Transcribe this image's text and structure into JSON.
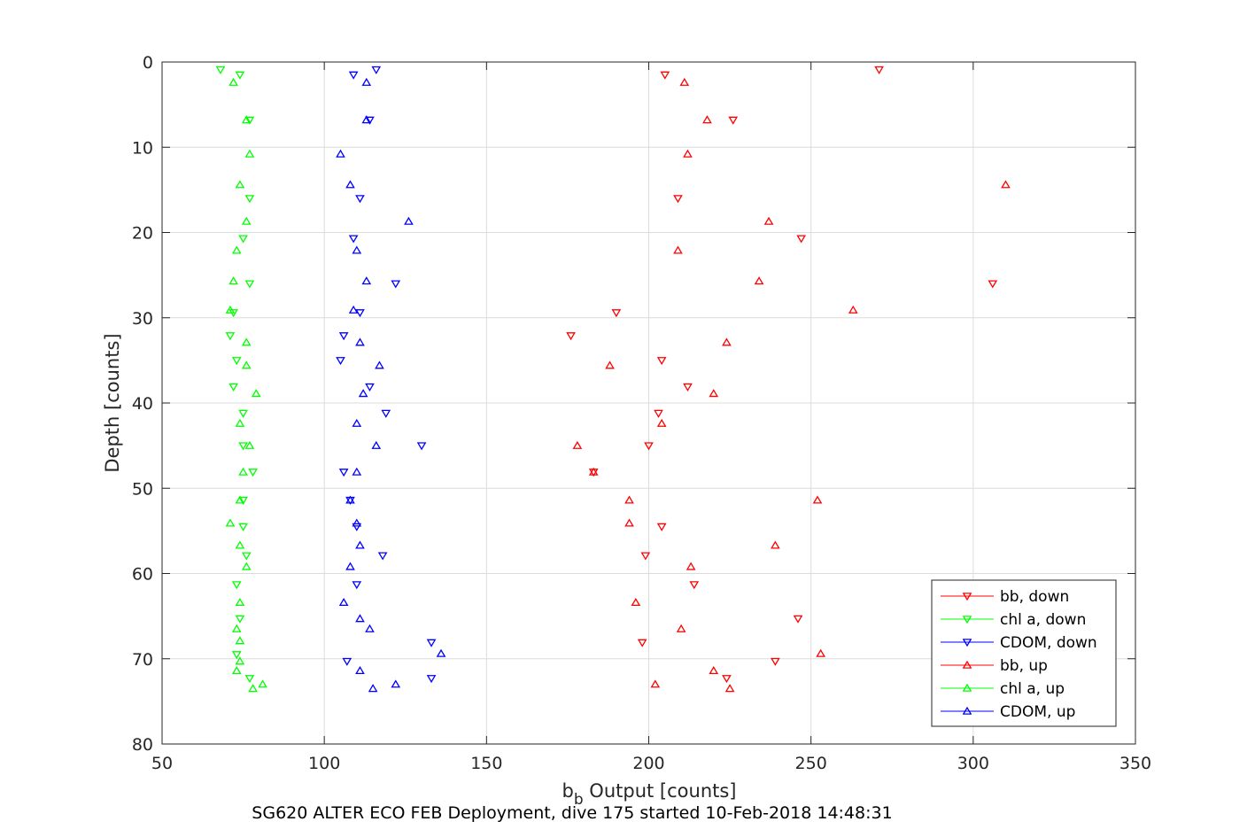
{
  "chart_data": {
    "type": "scatter",
    "xlabel": "b",
    "xlabel_sub": "b",
    "xlabel_rest": " Output [counts]",
    "ylabel": "Depth [counts]",
    "caption": "SG620 ALTER ECO FEB Deployment, dive 175 started 10-Feb-2018 14:48:31",
    "xlim": [
      50,
      350
    ],
    "ylim": [
      0,
      80
    ],
    "y_reversed": true,
    "grid": true,
    "legend_position": "bottom-right",
    "xticks": [
      "50",
      "100",
      "150",
      "200",
      "250",
      "300",
      "350"
    ],
    "yticks": [
      "0",
      "10",
      "20",
      "30",
      "40",
      "50",
      "60",
      "70",
      "80"
    ],
    "series": [
      {
        "name": "bb, down",
        "color": "#ff0000",
        "marker": "triangle-down",
        "points": [
          [
            271,
            0.9
          ],
          [
            205,
            1.5
          ],
          [
            226,
            6.8
          ],
          [
            209,
            16.0
          ],
          [
            247,
            20.7
          ],
          [
            306,
            26.0
          ],
          [
            190,
            29.4
          ],
          [
            176,
            32.1
          ],
          [
            204,
            35.0
          ],
          [
            212,
            38.1
          ],
          [
            203,
            41.2
          ],
          [
            200,
            45.0
          ],
          [
            183,
            48.1
          ],
          [
            204,
            54.5
          ],
          [
            199,
            57.9
          ],
          [
            214,
            61.3
          ],
          [
            246,
            65.3
          ],
          [
            198,
            68.1
          ],
          [
            239,
            70.3
          ],
          [
            224,
            72.3
          ]
        ]
      },
      {
        "name": "chl a, down",
        "color": "#00ff00",
        "marker": "triangle-down",
        "points": [
          [
            68,
            0.9
          ],
          [
            74,
            1.5
          ],
          [
            77,
            6.8
          ],
          [
            77,
            16.0
          ],
          [
            75,
            20.7
          ],
          [
            77,
            26.0
          ],
          [
            72,
            29.4
          ],
          [
            71,
            32.1
          ],
          [
            73,
            35.0
          ],
          [
            72,
            38.1
          ],
          [
            75,
            41.2
          ],
          [
            75,
            45.0
          ],
          [
            78,
            48.1
          ],
          [
            75,
            51.4
          ],
          [
            75,
            54.5
          ],
          [
            76,
            57.9
          ],
          [
            73,
            61.3
          ],
          [
            74,
            65.3
          ],
          [
            73,
            69.5
          ],
          [
            77,
            72.3
          ]
        ]
      },
      {
        "name": "CDOM, down",
        "color": "#0000ff",
        "marker": "triangle-down",
        "points": [
          [
            116,
            0.9
          ],
          [
            109,
            1.5
          ],
          [
            114,
            6.8
          ],
          [
            111,
            16.0
          ],
          [
            109,
            20.7
          ],
          [
            122,
            26.0
          ],
          [
            111,
            29.4
          ],
          [
            106,
            32.1
          ],
          [
            105,
            35.0
          ],
          [
            114,
            38.1
          ],
          [
            119,
            41.2
          ],
          [
            130,
            45.0
          ],
          [
            106,
            48.1
          ],
          [
            108,
            51.4
          ],
          [
            110,
            54.5
          ],
          [
            118,
            57.9
          ],
          [
            110,
            61.3
          ],
          [
            133,
            68.1
          ],
          [
            107,
            70.3
          ],
          [
            133,
            72.3
          ]
        ]
      },
      {
        "name": "bb, up",
        "color": "#ff0000",
        "marker": "triangle-up",
        "points": [
          [
            211,
            2.4
          ],
          [
            218,
            6.8
          ],
          [
            212,
            10.8
          ],
          [
            310,
            14.4
          ],
          [
            237,
            18.7
          ],
          [
            209,
            22.1
          ],
          [
            234,
            25.7
          ],
          [
            263,
            29.1
          ],
          [
            224,
            32.9
          ],
          [
            188,
            35.6
          ],
          [
            220,
            38.9
          ],
          [
            204,
            42.4
          ],
          [
            178,
            45.0
          ],
          [
            183,
            48.1
          ],
          [
            194,
            51.4
          ],
          [
            252,
            51.4
          ],
          [
            194,
            54.1
          ],
          [
            239,
            56.7
          ],
          [
            213,
            59.2
          ],
          [
            196,
            63.4
          ],
          [
            210,
            66.5
          ],
          [
            253,
            69.4
          ],
          [
            220,
            71.4
          ],
          [
            202,
            73.0
          ],
          [
            225,
            73.5
          ]
        ]
      },
      {
        "name": "chl a, up",
        "color": "#00ff00",
        "marker": "triangle-up",
        "points": [
          [
            72,
            2.4
          ],
          [
            76,
            6.8
          ],
          [
            77,
            10.8
          ],
          [
            74,
            14.4
          ],
          [
            76,
            18.7
          ],
          [
            73,
            22.1
          ],
          [
            72,
            25.7
          ],
          [
            71,
            29.1
          ],
          [
            76,
            32.9
          ],
          [
            76,
            35.6
          ],
          [
            79,
            38.9
          ],
          [
            74,
            42.4
          ],
          [
            77,
            45.0
          ],
          [
            75,
            48.1
          ],
          [
            74,
            51.4
          ],
          [
            71,
            54.1
          ],
          [
            74,
            56.7
          ],
          [
            76,
            59.2
          ],
          [
            74,
            63.4
          ],
          [
            73,
            66.5
          ],
          [
            74,
            67.9
          ],
          [
            74,
            70.3
          ],
          [
            73,
            71.4
          ],
          [
            81,
            73.0
          ],
          [
            78,
            73.5
          ]
        ]
      },
      {
        "name": "CDOM, up",
        "color": "#0000ff",
        "marker": "triangle-up",
        "points": [
          [
            113,
            2.4
          ],
          [
            113,
            6.8
          ],
          [
            105,
            10.8
          ],
          [
            108,
            14.4
          ],
          [
            126,
            18.7
          ],
          [
            110,
            22.1
          ],
          [
            113,
            25.7
          ],
          [
            109,
            29.1
          ],
          [
            111,
            32.9
          ],
          [
            117,
            35.6
          ],
          [
            112,
            38.9
          ],
          [
            110,
            42.4
          ],
          [
            116,
            45.0
          ],
          [
            110,
            48.1
          ],
          [
            108,
            51.4
          ],
          [
            110,
            54.1
          ],
          [
            111,
            56.7
          ],
          [
            108,
            59.2
          ],
          [
            106,
            63.4
          ],
          [
            111,
            65.3
          ],
          [
            114,
            66.5
          ],
          [
            136,
            69.4
          ],
          [
            111,
            71.4
          ],
          [
            122,
            73.0
          ],
          [
            115,
            73.5
          ]
        ]
      }
    ]
  }
}
